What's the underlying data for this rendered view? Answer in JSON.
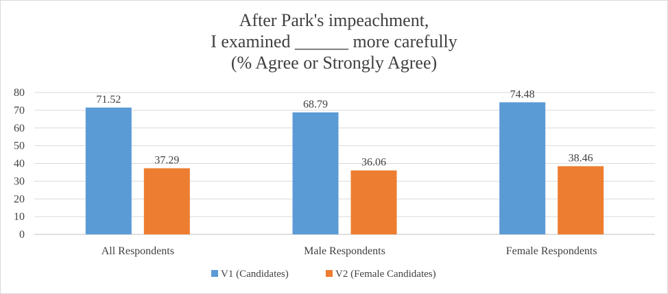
{
  "chart_data": {
    "type": "bar",
    "title_lines": [
      "After Park's impeachment,",
      "I examined ______ more carefully",
      "(% Agree or Strongly Agree)"
    ],
    "categories": [
      "All Respondents",
      "Male Respondents",
      "Female Respondents"
    ],
    "series": [
      {
        "name": "V1 (Candidates)",
        "color": "#5b9bd5",
        "values": [
          71.52,
          68.79,
          74.48
        ],
        "labels": [
          "71.52",
          "68.79",
          "74.48"
        ]
      },
      {
        "name": "V2 (Female Candidates)",
        "color": "#ed7d31",
        "values": [
          37.29,
          36.06,
          38.46
        ],
        "labels": [
          "37.29",
          "36.06",
          "38.46"
        ]
      }
    ],
    "ylim": [
      0,
      80
    ],
    "yticks": [
      "0",
      "10",
      "20",
      "30",
      "40",
      "50",
      "60",
      "70",
      "80"
    ],
    "grid": true,
    "legend_position": "bottom"
  }
}
